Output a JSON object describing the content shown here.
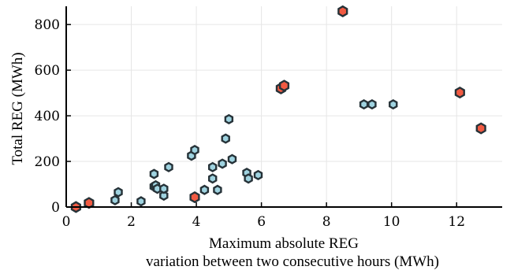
{
  "chart_data": {
    "type": "scatter",
    "title": "",
    "xlabel_lines": [
      "Maximum absolute REG",
      "variation between two consecutive hours (MWh)"
    ],
    "ylabel": "Total REG (MWh)",
    "xlim": [
      0,
      13.4
    ],
    "ylim": [
      0,
      880
    ],
    "xticks": [
      0,
      2,
      4,
      6,
      8,
      10,
      12
    ],
    "yticks": [
      0,
      200,
      400,
      600,
      800
    ],
    "grid": true,
    "legend": "none",
    "series": [
      {
        "color": "#9fd3e0",
        "edge_color": "#263238",
        "marker": "hexagon",
        "points": [
          [
            1.5,
            30
          ],
          [
            1.6,
            65
          ],
          [
            2.3,
            25
          ],
          [
            2.7,
            90
          ],
          [
            2.7,
            145
          ],
          [
            2.75,
            95
          ],
          [
            2.8,
            80
          ],
          [
            3.0,
            50
          ],
          [
            3.0,
            80
          ],
          [
            3.15,
            175
          ],
          [
            3.85,
            225
          ],
          [
            3.95,
            250
          ],
          [
            4.25,
            75
          ],
          [
            4.5,
            125
          ],
          [
            4.5,
            175
          ],
          [
            4.65,
            75
          ],
          [
            4.8,
            190
          ],
          [
            4.9,
            300
          ],
          [
            5.0,
            385
          ],
          [
            5.1,
            210
          ],
          [
            5.55,
            150
          ],
          [
            5.6,
            125
          ],
          [
            5.9,
            140
          ],
          [
            9.15,
            450
          ],
          [
            9.4,
            450
          ],
          [
            10.05,
            450
          ]
        ]
      },
      {
        "color": "#f15a42",
        "edge_color": "#263238",
        "marker": "hexagon",
        "points": [
          [
            0.3,
            0
          ],
          [
            0.7,
            18
          ],
          [
            3.95,
            43
          ],
          [
            6.6,
            520
          ],
          [
            6.7,
            532
          ],
          [
            8.5,
            858
          ],
          [
            12.1,
            502
          ],
          [
            12.75,
            345
          ]
        ]
      }
    ]
  }
}
